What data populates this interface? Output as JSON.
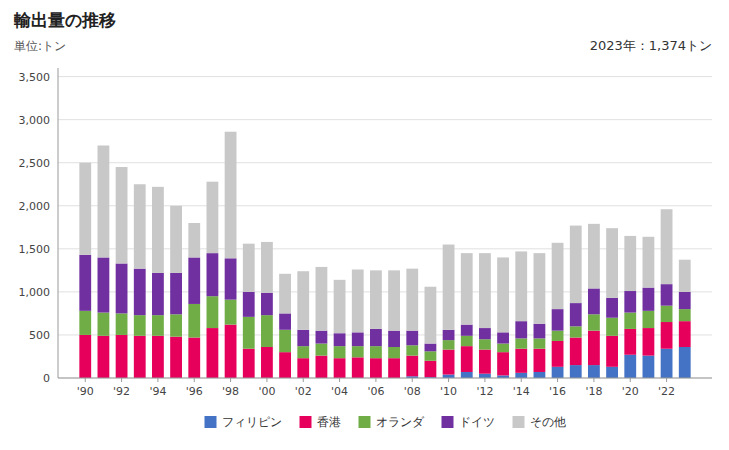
{
  "chart_data": {
    "type": "bar",
    "stacked": true,
    "title": "輸出量の推移",
    "subtitle": "単位:トン",
    "annotation": "2023年：1,374トン",
    "x": [
      1990,
      1991,
      1992,
      1993,
      1994,
      1995,
      1996,
      1997,
      1998,
      1999,
      2000,
      2001,
      2002,
      2003,
      2004,
      2005,
      2006,
      2007,
      2008,
      2009,
      2010,
      2011,
      2012,
      2013,
      2014,
      2015,
      2016,
      2017,
      2018,
      2019,
      2020,
      2021,
      2022,
      2023
    ],
    "series": [
      {
        "name": "フィリピン",
        "color": "#4472c4",
        "values": [
          0,
          0,
          0,
          0,
          0,
          0,
          0,
          0,
          0,
          0,
          0,
          0,
          0,
          0,
          0,
          0,
          0,
          0,
          20,
          10,
          40,
          70,
          50,
          30,
          60,
          70,
          130,
          150,
          150,
          130,
          270,
          260,
          340,
          360
        ]
      },
      {
        "name": "香港",
        "color": "#e6005c",
        "values": [
          500,
          490,
          500,
          490,
          490,
          480,
          470,
          580,
          620,
          340,
          360,
          300,
          230,
          260,
          230,
          240,
          230,
          230,
          240,
          190,
          290,
          300,
          280,
          270,
          280,
          270,
          300,
          320,
          400,
          360,
          300,
          320,
          310,
          300
        ]
      },
      {
        "name": "オランダ",
        "color": "#70ad47",
        "values": [
          280,
          270,
          250,
          240,
          240,
          260,
          390,
          370,
          290,
          370,
          370,
          260,
          140,
          140,
          140,
          130,
          140,
          130,
          120,
          110,
          110,
          120,
          120,
          100,
          120,
          120,
          120,
          130,
          190,
          210,
          190,
          200,
          190,
          140
        ]
      },
      {
        "name": "ドイツ",
        "color": "#7030a0",
        "values": [
          650,
          640,
          580,
          540,
          490,
          480,
          540,
          500,
          480,
          290,
          260,
          190,
          190,
          150,
          150,
          160,
          200,
          190,
          170,
          90,
          120,
          130,
          130,
          130,
          200,
          170,
          250,
          270,
          300,
          230,
          250,
          270,
          250,
          200
        ]
      },
      {
        "name": "その他",
        "color": "#c8c8c8",
        "values": [
          1070,
          1300,
          1120,
          980,
          1000,
          780,
          400,
          830,
          1470,
          560,
          590,
          460,
          680,
          740,
          620,
          730,
          680,
          700,
          720,
          660,
          990,
          830,
          870,
          870,
          810,
          820,
          770,
          900,
          750,
          810,
          640,
          590,
          870,
          374
        ]
      }
    ],
    "xlim": [
      1988.5,
      2024.5
    ],
    "xticks": [
      {
        "value": 1990,
        "label": "'90"
      },
      {
        "value": 1992,
        "label": "'92"
      },
      {
        "value": 1994,
        "label": "'94"
      },
      {
        "value": 1996,
        "label": "'96"
      },
      {
        "value": 1998,
        "label": "'98"
      },
      {
        "value": 2000,
        "label": "'00"
      },
      {
        "value": 2002,
        "label": "'02"
      },
      {
        "value": 2004,
        "label": "'04"
      },
      {
        "value": 2006,
        "label": "'06"
      },
      {
        "value": 2008,
        "label": "'08"
      },
      {
        "value": 2010,
        "label": "'10"
      },
      {
        "value": 2012,
        "label": "'12"
      },
      {
        "value": 2014,
        "label": "'14"
      },
      {
        "value": 2016,
        "label": "'16"
      },
      {
        "value": 2018,
        "label": "'18"
      },
      {
        "value": 2020,
        "label": "'20"
      },
      {
        "value": 2022,
        "label": "'22"
      }
    ],
    "ylim": [
      0,
      3600
    ],
    "yticks": [
      0,
      500,
      {
        "value": 1000,
        "label": "1,000"
      },
      {
        "value": 1500,
        "label": "1,500"
      },
      {
        "value": 2000,
        "label": "2,000"
      },
      {
        "value": 2500,
        "label": "2,500"
      },
      {
        "value": 3000,
        "label": "3,000"
      },
      {
        "value": 3500,
        "label": "3,500"
      }
    ],
    "grid": true,
    "legend": "bottom"
  }
}
